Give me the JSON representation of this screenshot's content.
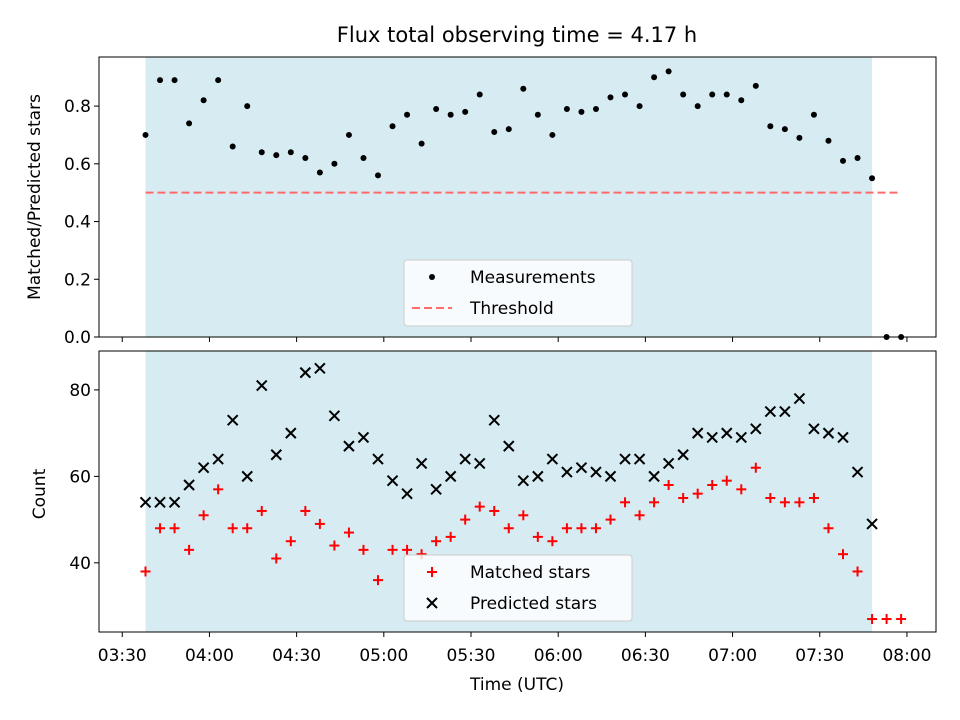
{
  "chart_data": [
    {
      "type": "scatter",
      "title": "Flux total observing time = 4.17 h",
      "xlabel": "",
      "ylabel": "Matched/Predicted stars",
      "ylim": [
        0,
        0.97
      ],
      "yticks": [
        "0.0",
        "0.2",
        "0.4",
        "0.6",
        "0.8"
      ],
      "shaded_span": [
        "03:38",
        "07:48"
      ],
      "legend_position": "lower center",
      "series": [
        {
          "name": "Measurements",
          "marker": "dot",
          "color": "#000000",
          "x": [
            "03:38",
            "03:43",
            "03:48",
            "03:53",
            "03:58",
            "04:03",
            "04:08",
            "04:13",
            "04:18",
            "04:23",
            "04:28",
            "04:33",
            "04:38",
            "04:43",
            "04:48",
            "04:53",
            "04:58",
            "05:03",
            "05:08",
            "05:13",
            "05:18",
            "05:23",
            "05:28",
            "05:33",
            "05:38",
            "05:43",
            "05:48",
            "05:53",
            "05:58",
            "06:03",
            "06:08",
            "06:13",
            "06:18",
            "06:23",
            "06:28",
            "06:33",
            "06:38",
            "06:43",
            "06:48",
            "06:53",
            "06:58",
            "07:03",
            "07:08",
            "07:13",
            "07:18",
            "07:23",
            "07:28",
            "07:33",
            "07:38",
            "07:43",
            "07:48",
            "07:53",
            "07:58"
          ],
          "y": [
            0.7,
            0.89,
            0.89,
            0.74,
            0.82,
            0.89,
            0.66,
            0.8,
            0.64,
            0.63,
            0.64,
            0.62,
            0.57,
            0.6,
            0.7,
            0.62,
            0.56,
            0.73,
            0.77,
            0.67,
            0.79,
            0.77,
            0.78,
            0.84,
            0.71,
            0.72,
            0.86,
            0.77,
            0.7,
            0.79,
            0.78,
            0.79,
            0.83,
            0.84,
            0.8,
            0.9,
            0.92,
            0.84,
            0.8,
            0.84,
            0.84,
            0.82,
            0.87,
            0.73,
            0.72,
            0.69,
            0.77,
            0.68,
            0.61,
            0.62,
            0.55,
            0.0,
            0.0
          ]
        },
        {
          "name": "Threshold",
          "style": "dashed",
          "color": "#ff6b6b",
          "x": [
            "03:38",
            "07:58"
          ],
          "y": [
            0.5,
            0.5
          ]
        }
      ]
    },
    {
      "type": "scatter",
      "title": "",
      "xlabel": "Time (UTC)",
      "ylabel": "Count",
      "ylim": [
        24,
        89
      ],
      "yticks": [
        "40",
        "60",
        "80"
      ],
      "xticks": [
        "03:30",
        "04:00",
        "04:30",
        "05:00",
        "05:30",
        "06:00",
        "06:30",
        "07:00",
        "07:30",
        "08:00"
      ],
      "shaded_span": [
        "03:38",
        "07:48"
      ],
      "legend_position": "lower center",
      "series": [
        {
          "name": "Matched stars",
          "marker": "plus",
          "color": "#ff0000",
          "x": [
            "03:38",
            "03:43",
            "03:48",
            "03:53",
            "03:58",
            "04:03",
            "04:08",
            "04:13",
            "04:18",
            "04:23",
            "04:28",
            "04:33",
            "04:38",
            "04:43",
            "04:48",
            "04:53",
            "04:58",
            "05:03",
            "05:08",
            "05:13",
            "05:18",
            "05:23",
            "05:28",
            "05:33",
            "05:38",
            "05:43",
            "05:48",
            "05:53",
            "05:58",
            "06:03",
            "06:08",
            "06:13",
            "06:18",
            "06:23",
            "06:28",
            "06:33",
            "06:38",
            "06:43",
            "06:48",
            "06:53",
            "06:58",
            "07:03",
            "07:08",
            "07:13",
            "07:18",
            "07:23",
            "07:28",
            "07:33",
            "07:38",
            "07:43",
            "07:48",
            "07:53",
            "07:58"
          ],
          "y": [
            38,
            48,
            48,
            43,
            51,
            57,
            48,
            48,
            52,
            41,
            45,
            52,
            49,
            44,
            47,
            43,
            36,
            43,
            43,
            42,
            45,
            46,
            50,
            53,
            52,
            48,
            51,
            46,
            45,
            48,
            48,
            48,
            50,
            54,
            51,
            54,
            58,
            55,
            56,
            58,
            59,
            57,
            62,
            55,
            54,
            54,
            55,
            48,
            42,
            38,
            27,
            27,
            27
          ]
        },
        {
          "name": "Predicted stars",
          "marker": "x",
          "color": "#000000",
          "x": [
            "03:38",
            "03:43",
            "03:48",
            "03:53",
            "03:58",
            "04:03",
            "04:08",
            "04:13",
            "04:18",
            "04:23",
            "04:28",
            "04:33",
            "04:38",
            "04:43",
            "04:48",
            "04:53",
            "04:58",
            "05:03",
            "05:08",
            "05:13",
            "05:18",
            "05:23",
            "05:28",
            "05:33",
            "05:38",
            "05:43",
            "05:48",
            "05:53",
            "05:58",
            "06:03",
            "06:08",
            "06:13",
            "06:18",
            "06:23",
            "06:28",
            "06:33",
            "06:38",
            "06:43",
            "06:48",
            "06:53",
            "06:58",
            "07:03",
            "07:08",
            "07:13",
            "07:18",
            "07:23",
            "07:28",
            "07:33",
            "07:38",
            "07:43",
            "07:48"
          ],
          "y": [
            54,
            54,
            54,
            58,
            62,
            64,
            73,
            60,
            81,
            65,
            70,
            84,
            85,
            74,
            67,
            69,
            64,
            59,
            56,
            63,
            57,
            60,
            64,
            63,
            73,
            67,
            59,
            60,
            64,
            61,
            62,
            61,
            60,
            64,
            64,
            60,
            63,
            65,
            70,
            69,
            70,
            69,
            71,
            75,
            75,
            78,
            71,
            70,
            69,
            61,
            49
          ]
        }
      ]
    }
  ]
}
